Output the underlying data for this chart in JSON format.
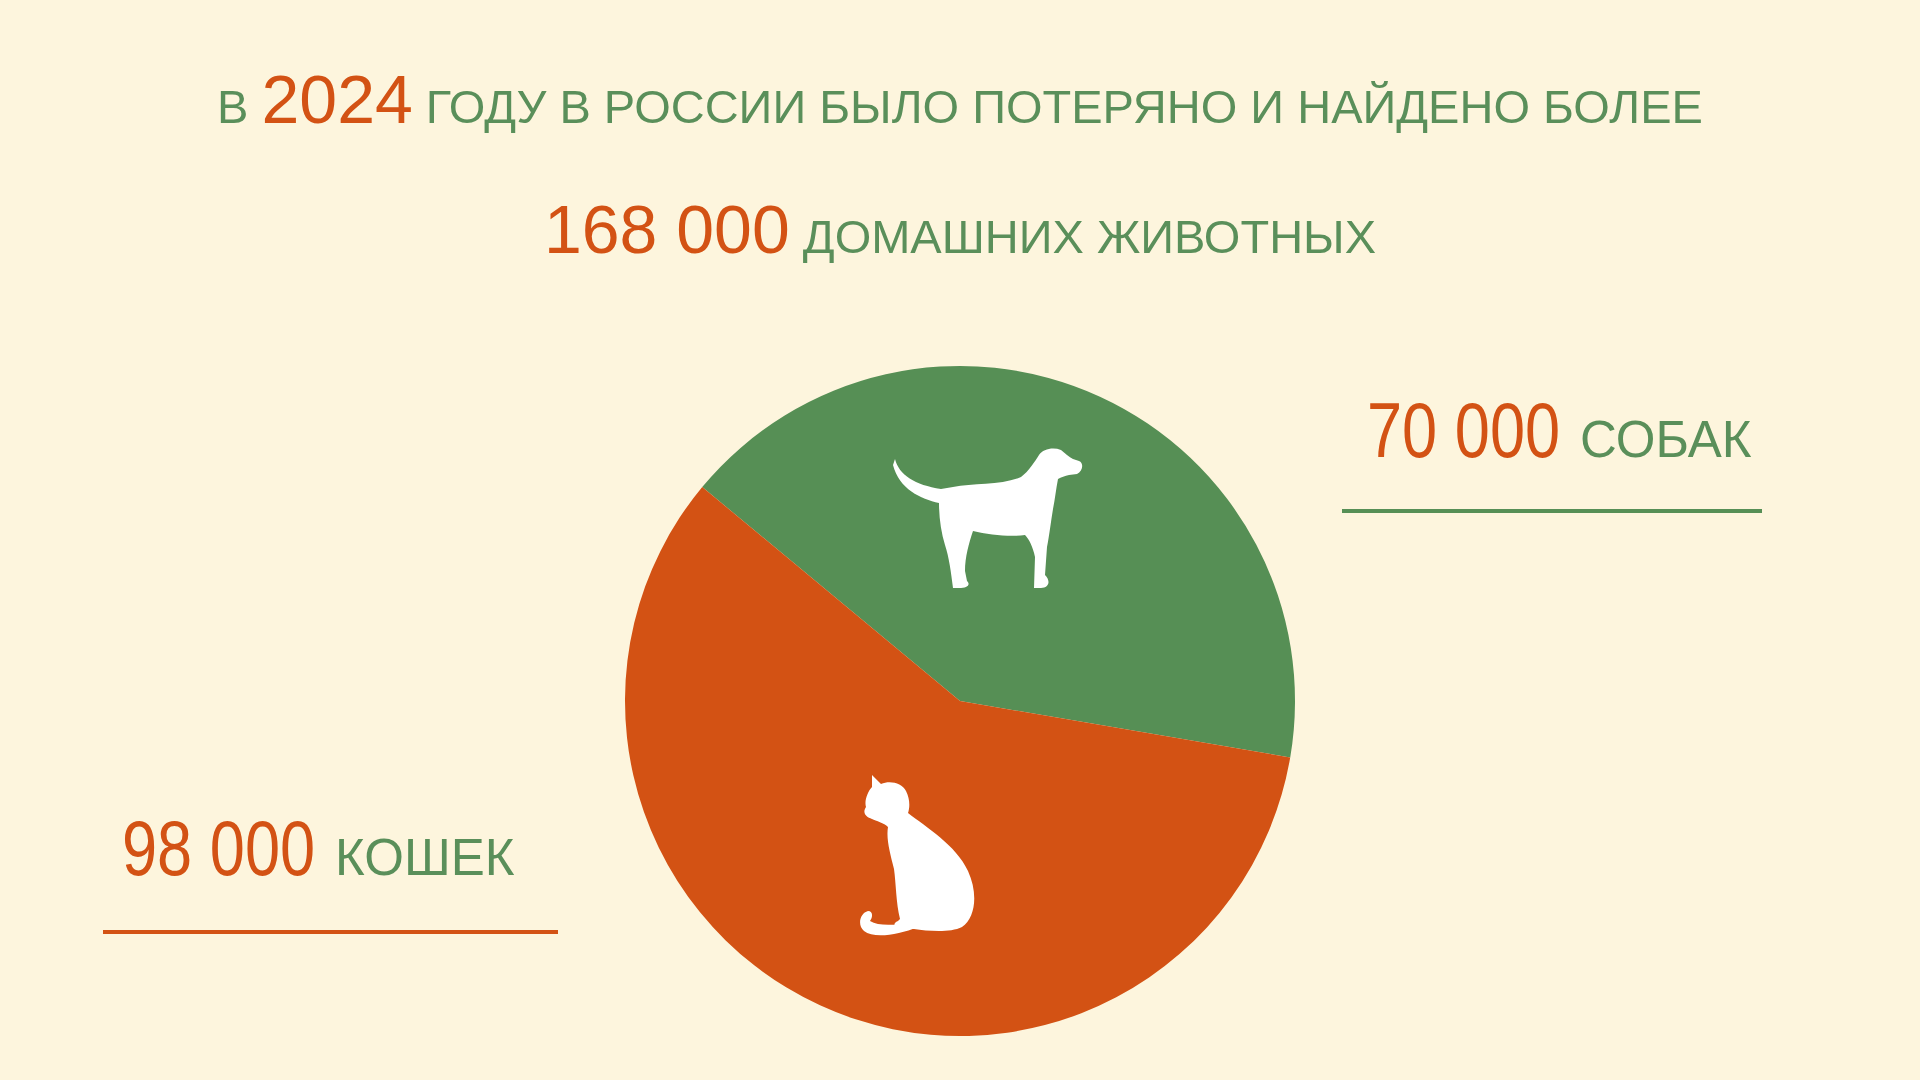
{
  "chart_data": {
    "type": "pie",
    "title": "В 2024 ГОДУ В РОССИИ БЫЛО ПОТЕРЯНО И НАЙДЕНО БОЛЕЕ 168 000 ДОМАШНИХ ЖИВОТНЫХ",
    "categories": [
      "СОБАК",
      "КОШЕК"
    ],
    "values": [
      70000,
      98000
    ],
    "colors": [
      "#568f55",
      "#d35214"
    ],
    "value_labels": [
      "70 000",
      "98 000"
    ]
  }
}
